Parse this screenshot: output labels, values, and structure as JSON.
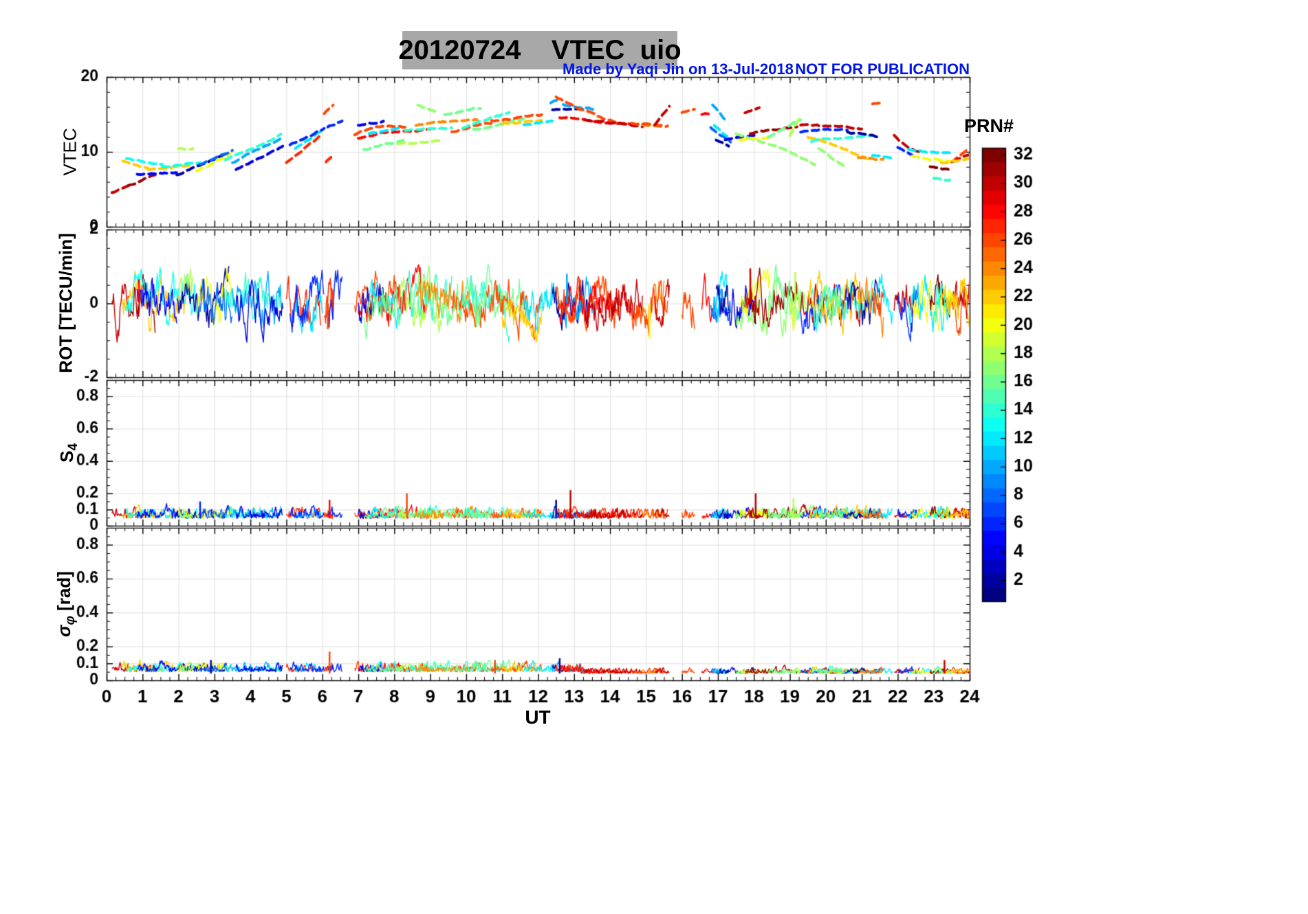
{
  "page": {
    "title": "20120724    VTEC  uio",
    "annotation_made_by": "Made by Yaqi Jin on 13-Jul-2018",
    "annotation_warning": "NOT FOR PUBLICATION",
    "xlabel": "UT",
    "colorbar_label": "PRN#",
    "ylabel_vtec": "VTEC",
    "ylabel_rot": "ROT [TECU/min]",
    "ylabel_s4_main": "S",
    "ylabel_s4_sub": "4",
    "ylabel_sigma_main": "σ",
    "ylabel_sigma_sub": "φ",
    "ylabel_sigma_rest": " [rad]",
    "colors": {
      "annotation_blue": "#0014e8",
      "title_background": "#a8a8a8",
      "grid": "#dedede",
      "axis": "#000000"
    }
  },
  "chart_data": {
    "type": "line",
    "title": "20120724 VTEC uio",
    "xlabel": "UT",
    "x_range": [
      0,
      24
    ],
    "x_ticks": [
      0,
      1,
      2,
      3,
      4,
      5,
      6,
      7,
      8,
      9,
      10,
      11,
      12,
      13,
      14,
      15,
      16,
      17,
      18,
      19,
      20,
      21,
      22,
      23,
      24
    ],
    "x_minor_step": 0.25,
    "colorbar": {
      "label": "PRN#",
      "min": 1,
      "max": 32,
      "colormap": "jet",
      "ticks": [
        2,
        4,
        6,
        8,
        10,
        12,
        14,
        16,
        18,
        20,
        22,
        24,
        26,
        28,
        30,
        32
      ]
    },
    "panels": [
      {
        "id": "vtec",
        "ylabel": "VTEC",
        "ylim": [
          0,
          20
        ],
        "yticks": [
          0,
          10,
          20
        ],
        "y_minor_step": 2
      },
      {
        "id": "rot",
        "ylabel": "ROT [TECU/min]",
        "ylim": [
          -2,
          2
        ],
        "yticks": [
          -2,
          0,
          2
        ],
        "y_minor_step": 0.5
      },
      {
        "id": "s4",
        "ylabel": "S_4",
        "ylim": [
          0,
          0.9
        ],
        "yticks": [
          0,
          0.1,
          0.2,
          0.4,
          0.6,
          0.8
        ],
        "y_minor_step": 0.05
      },
      {
        "id": "sigma_phi",
        "ylabel": "sigma_phi [rad]",
        "ylim": [
          0,
          0.9
        ],
        "yticks": [
          0,
          0.1,
          0.2,
          0.4,
          0.6,
          0.8
        ],
        "y_minor_step": 0.05
      }
    ],
    "vtec_traces": [
      {
        "prn": 30,
        "t": [
          0.15,
          0.6
        ],
        "v": [
          4.6,
          5.3
        ]
      },
      {
        "prn": 31,
        "t": [
          0.6,
          1.35
        ],
        "v": [
          5.5,
          7.0
        ]
      },
      {
        "prn": 22,
        "t": [
          0.45,
          1.15
        ],
        "v": [
          8.7,
          7.8
        ]
      },
      {
        "prn": 22,
        "t": [
          1.15,
          2.35
        ],
        "v": [
          7.7,
          8.3
        ]
      },
      {
        "prn": 13,
        "t": [
          0.55,
          1.55
        ],
        "v": [
          9.1,
          8.2
        ]
      },
      {
        "prn": 13,
        "t": [
          1.55,
          2.6
        ],
        "v": [
          8.1,
          8.6
        ]
      },
      {
        "prn": 5,
        "t": [
          0.85,
          1.95
        ],
        "v": [
          7.0,
          7.2
        ]
      },
      {
        "prn": 2,
        "t": [
          1.95,
          3.4
        ],
        "v": [
          6.9,
          9.9
        ]
      },
      {
        "prn": 18,
        "t": [
          2.0,
          2.4
        ],
        "v": [
          10.4,
          10.5
        ]
      },
      {
        "prn": 20,
        "t": [
          2.5,
          3.45
        ],
        "v": [
          7.4,
          9.7
        ]
      },
      {
        "prn": 8,
        "t": [
          2.6,
          3.5
        ],
        "v": [
          8.3,
          10.2
        ]
      },
      {
        "prn": 14,
        "t": [
          3.3,
          4.85
        ],
        "v": [
          9.0,
          12.3
        ]
      },
      {
        "prn": 10,
        "t": [
          3.5,
          4.85
        ],
        "v": [
          8.6,
          11.8
        ]
      },
      {
        "prn": 4,
        "t": [
          3.6,
          4.9
        ],
        "v": [
          7.6,
          10.8
        ]
      },
      {
        "prn": 27,
        "t": [
          5.0,
          5.95
        ],
        "v": [
          8.6,
          12.1
        ]
      },
      {
        "prn": 12,
        "t": [
          5.25,
          6.0
        ],
        "v": [
          10.5,
          12.8
        ]
      },
      {
        "prn": 6,
        "t": [
          5.1,
          6.05
        ],
        "v": [
          11.0,
          13.1
        ]
      },
      {
        "prn": 26,
        "t": [
          6.05,
          6.3
        ],
        "v": [
          15.1,
          16.2
        ]
      },
      {
        "prn": 27,
        "t": [
          6.1,
          6.3
        ],
        "v": [
          8.6,
          9.6
        ]
      },
      {
        "prn": 6,
        "t": [
          6.15,
          6.55
        ],
        "v": [
          13.3,
          14.2
        ]
      },
      {
        "prn": 26,
        "t": [
          6.9,
          8.3
        ],
        "v": [
          12.3,
          13.3
        ],
        "bend": 0.5
      },
      {
        "prn": 28,
        "t": [
          7.0,
          9.0
        ],
        "v": [
          11.8,
          12.9
        ],
        "bend": 0.3
      },
      {
        "prn": 4,
        "t": [
          7.0,
          7.7
        ],
        "v": [
          13.6,
          14.0
        ]
      },
      {
        "prn": 12,
        "t": [
          7.3,
          8.2
        ],
        "v": [
          12.4,
          13.0
        ]
      },
      {
        "prn": 16,
        "t": [
          7.15,
          8.25
        ],
        "v": [
          10.3,
          11.5
        ]
      },
      {
        "prn": 18,
        "t": [
          8.1,
          9.35
        ],
        "v": [
          11.0,
          11.4
        ]
      },
      {
        "prn": 17,
        "t": [
          8.65,
          9.2
        ],
        "v": [
          16.3,
          15.2
        ]
      },
      {
        "prn": 14,
        "t": [
          8.3,
          9.6
        ],
        "v": [
          12.8,
          13.2
        ]
      },
      {
        "prn": 24,
        "t": [
          8.6,
          10.3
        ],
        "v": [
          13.6,
          14.3
        ]
      },
      {
        "prn": 26,
        "t": [
          9.6,
          10.7
        ],
        "v": [
          12.6,
          13.9
        ]
      },
      {
        "prn": 16,
        "t": [
          9.4,
          10.4
        ],
        "v": [
          15.0,
          15.8
        ]
      },
      {
        "prn": 14,
        "t": [
          9.9,
          11.2
        ],
        "v": [
          13.2,
          15.4
        ]
      },
      {
        "prn": 16,
        "t": [
          10.2,
          11.6
        ],
        "v": [
          13.0,
          14.2
        ]
      },
      {
        "prn": 26,
        "t": [
          10.7,
          12.1
        ],
        "v": [
          14.2,
          14.9
        ]
      },
      {
        "prn": 22,
        "t": [
          11.0,
          12.1
        ],
        "v": [
          13.8,
          14.2
        ]
      },
      {
        "prn": 12,
        "t": [
          11.6,
          12.4
        ],
        "v": [
          13.6,
          14.2
        ]
      },
      {
        "prn": 10,
        "t": [
          12.35,
          12.6
        ],
        "v": [
          16.6,
          17.1
        ]
      },
      {
        "prn": 2,
        "t": [
          12.4,
          13.4
        ],
        "v": [
          15.6,
          15.9
        ]
      },
      {
        "prn": 10,
        "t": [
          12.7,
          13.6
        ],
        "v": [
          16.3,
          15.7
        ]
      },
      {
        "prn": 26,
        "t": [
          12.5,
          14.3
        ],
        "v": [
          17.4,
          13.9
        ],
        "bend": -0.4
      },
      {
        "prn": 28,
        "t": [
          12.6,
          14.6
        ],
        "v": [
          14.6,
          13.6
        ]
      },
      {
        "prn": 30,
        "t": [
          13.3,
          14.9
        ],
        "v": [
          14.3,
          13.4
        ]
      },
      {
        "prn": 24,
        "t": [
          14.9,
          15.5
        ],
        "v": [
          13.6,
          13.4
        ]
      },
      {
        "prn": 26,
        "t": [
          14.6,
          15.6
        ],
        "v": [
          13.8,
          13.5
        ]
      },
      {
        "prn": 30,
        "t": [
          15.25,
          15.65
        ],
        "v": [
          13.6,
          16.0
        ]
      },
      {
        "prn": 26,
        "t": [
          16.0,
          16.35
        ],
        "v": [
          15.3,
          15.6
        ]
      },
      {
        "prn": 28,
        "t": [
          16.55,
          16.85
        ],
        "v": [
          15.0,
          15.2
        ]
      },
      {
        "prn": 8,
        "t": [
          16.8,
          17.35
        ],
        "v": [
          13.2,
          11.3
        ]
      },
      {
        "prn": 10,
        "t": [
          16.85,
          17.2
        ],
        "v": [
          16.2,
          14.2
        ]
      },
      {
        "prn": 12,
        "t": [
          16.9,
          17.25
        ],
        "v": [
          13.5,
          12.0
        ]
      },
      {
        "prn": 2,
        "t": [
          16.95,
          17.3
        ],
        "v": [
          11.6,
          10.9
        ]
      },
      {
        "prn": 4,
        "t": [
          17.2,
          18.05
        ],
        "v": [
          11.6,
          12.2
        ]
      },
      {
        "prn": 17,
        "t": [
          17.5,
          19.7
        ],
        "v": [
          12.4,
          8.3
        ],
        "bend": 0.4
      },
      {
        "prn": 20,
        "t": [
          17.6,
          18.45
        ],
        "v": [
          11.6,
          12.0
        ]
      },
      {
        "prn": 30,
        "t": [
          17.75,
          18.15
        ],
        "v": [
          15.2,
          16.0
        ]
      },
      {
        "prn": 31,
        "t": [
          17.9,
          19.2
        ],
        "v": [
          12.4,
          13.4
        ]
      },
      {
        "prn": 16,
        "t": [
          18.4,
          19.3
        ],
        "v": [
          12.0,
          14.3
        ]
      },
      {
        "prn": 18,
        "t": [
          19.0,
          19.3
        ],
        "v": [
          12.2,
          14.8
        ]
      },
      {
        "prn": 30,
        "t": [
          19.3,
          21.0
        ],
        "v": [
          13.6,
          13.1
        ]
      },
      {
        "prn": 6,
        "t": [
          19.3,
          20.6
        ],
        "v": [
          12.7,
          13.0
        ]
      },
      {
        "prn": 22,
        "t": [
          19.5,
          21.2
        ],
        "v": [
          12.0,
          8.9
        ],
        "bend": 0.3
      },
      {
        "prn": 14,
        "t": [
          19.6,
          21.3
        ],
        "v": [
          11.4,
          12.3
        ]
      },
      {
        "prn": 17,
        "t": [
          19.8,
          20.5
        ],
        "v": [
          10.5,
          8.1
        ]
      },
      {
        "prn": 2,
        "t": [
          20.6,
          21.5
        ],
        "v": [
          12.6,
          11.9
        ]
      },
      {
        "prn": 24,
        "t": [
          20.9,
          21.6
        ],
        "v": [
          9.2,
          9.0
        ]
      },
      {
        "prn": 12,
        "t": [
          21.3,
          21.85
        ],
        "v": [
          9.5,
          9.3
        ]
      },
      {
        "prn": 26,
        "t": [
          21.3,
          21.6
        ],
        "v": [
          16.4,
          16.6
        ]
      },
      {
        "prn": 30,
        "t": [
          21.9,
          22.6
        ],
        "v": [
          12.2,
          10.0
        ],
        "bend": -0.3
      },
      {
        "prn": 6,
        "t": [
          22.0,
          22.55
        ],
        "v": [
          10.6,
          9.3
        ]
      },
      {
        "prn": 12,
        "t": [
          22.3,
          23.5
        ],
        "v": [
          10.3,
          9.7
        ]
      },
      {
        "prn": 20,
        "t": [
          22.4,
          23.6
        ],
        "v": [
          9.4,
          8.8
        ]
      },
      {
        "prn": 32,
        "t": [
          22.9,
          23.5
        ],
        "v": [
          8.0,
          7.6
        ]
      },
      {
        "prn": 14,
        "t": [
          23.0,
          23.45
        ],
        "v": [
          6.5,
          6.2
        ]
      },
      {
        "prn": 26,
        "t": [
          23.5,
          24.0
        ],
        "v": [
          8.7,
          10.4
        ]
      },
      {
        "prn": 30,
        "t": [
          23.55,
          24.0
        ],
        "v": [
          8.8,
          9.7
        ]
      },
      {
        "prn": 22,
        "t": [
          23.2,
          24.0
        ],
        "v": [
          8.6,
          9.0
        ]
      }
    ],
    "noise": {
      "rot": {
        "amplitude": 0.38,
        "spikes": [
          {
            "prn": 20,
            "t": 15.1,
            "v": -0.95
          },
          {
            "prn": 30,
            "t": 17.9,
            "v": 0.95
          },
          {
            "prn": 18,
            "t": 19.15,
            "v": 0.85
          },
          {
            "prn": 20,
            "t": 19.1,
            "v": -0.7
          },
          {
            "prn": 10,
            "t": 12.8,
            "v": 0.8
          },
          {
            "prn": 26,
            "t": 6.15,
            "v": -0.7
          },
          {
            "prn": 28,
            "t": 0.9,
            "v": 0.65
          }
        ]
      },
      "s4": {
        "base": 0.045,
        "amplitude": 0.04,
        "spikes": [
          {
            "prn": 26,
            "t": 8.35,
            "v": 0.2
          },
          {
            "prn": 30,
            "t": 12.9,
            "v": 0.22
          },
          {
            "prn": 30,
            "t": 18.05,
            "v": 0.2
          },
          {
            "prn": 2,
            "t": 12.5,
            "v": 0.16
          },
          {
            "prn": 28,
            "t": 6.2,
            "v": 0.16
          },
          {
            "prn": 6,
            "t": 2.6,
            "v": 0.15
          },
          {
            "prn": 18,
            "t": 19.1,
            "v": 0.17
          }
        ]
      },
      "sigma_phi": {
        "base": 0.05,
        "amplitude": 0.032,
        "quiet_after": 13.2,
        "quiet_factor": 0.6,
        "spikes": [
          {
            "prn": 26,
            "t": 6.2,
            "v": 0.17
          },
          {
            "prn": 2,
            "t": 12.6,
            "v": 0.13
          },
          {
            "prn": 4,
            "t": 2.9,
            "v": 0.12
          },
          {
            "prn": 30,
            "t": 23.3,
            "v": 0.12
          },
          {
            "prn": 26,
            "t": 10.8,
            "v": 0.12
          }
        ]
      }
    }
  }
}
